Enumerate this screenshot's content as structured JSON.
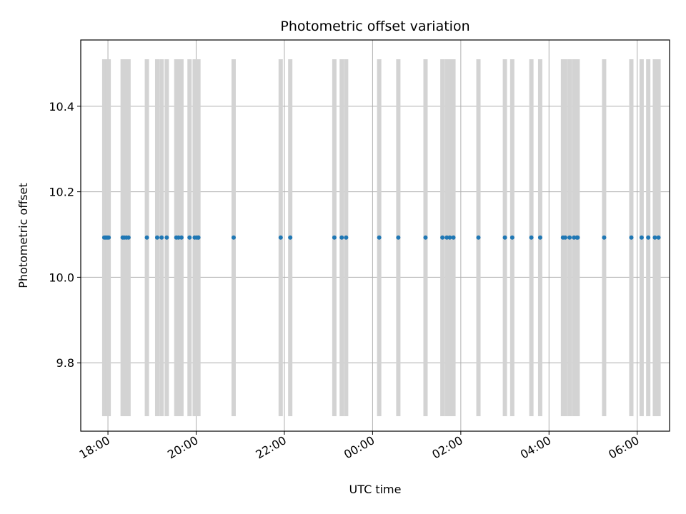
{
  "chart_data": {
    "type": "scatter",
    "title": "Photometric offset variation",
    "xlabel": "UTC time",
    "ylabel": "Photometric offset",
    "x_axis": "time (hours from 17:00 UTC, continuing past midnight)",
    "xlim": [
      "17:23",
      "06:44"
    ],
    "ylim": [
      9.64,
      10.555
    ],
    "x_ticks": [
      "18:00",
      "20:00",
      "22:00",
      "00:00",
      "02:00",
      "04:00",
      "06:00"
    ],
    "y_ticks": [
      9.8,
      10.0,
      10.2,
      10.4
    ],
    "grid": true,
    "marker_color": "#1f77b4",
    "errorbar_color": "#d3d3d3",
    "errorbar_range": [
      9.675,
      10.51
    ],
    "series": [
      {
        "x": [
          "17:55",
          "17:57",
          "17:59",
          "18:01",
          "18:20",
          "18:22",
          "18:25",
          "18:28",
          "18:53",
          "19:07",
          "19:13",
          "19:20",
          "19:33",
          "19:36",
          "19:40",
          "19:51",
          "19:58",
          "20:01",
          "20:03",
          "20:03",
          "20:51",
          "21:55",
          "22:08",
          "23:08",
          "23:18",
          "23:24",
          "00:09",
          "00:35",
          "01:12",
          "01:35",
          "01:41",
          "01:45",
          "01:50",
          "02:24",
          "03:00",
          "03:10",
          "03:36",
          "03:48",
          "04:19",
          "04:22",
          "04:28",
          "04:34",
          "04:38",
          "04:39",
          "05:15",
          "05:52",
          "06:06",
          "06:15",
          "06:24",
          "06:29"
        ],
        "y": [
          10.093,
          10.093,
          10.093,
          10.093,
          10.093,
          10.093,
          10.093,
          10.093,
          10.093,
          10.093,
          10.093,
          10.093,
          10.093,
          10.093,
          10.093,
          10.093,
          10.093,
          10.093,
          10.093,
          10.093,
          10.093,
          10.093,
          10.093,
          10.093,
          10.093,
          10.093,
          10.093,
          10.093,
          10.093,
          10.093,
          10.093,
          10.093,
          10.093,
          10.093,
          10.093,
          10.093,
          10.093,
          10.093,
          10.093,
          10.093,
          10.093,
          10.093,
          10.093,
          10.093,
          10.093,
          10.093,
          10.093,
          10.093,
          10.093,
          10.093
        ]
      }
    ]
  }
}
